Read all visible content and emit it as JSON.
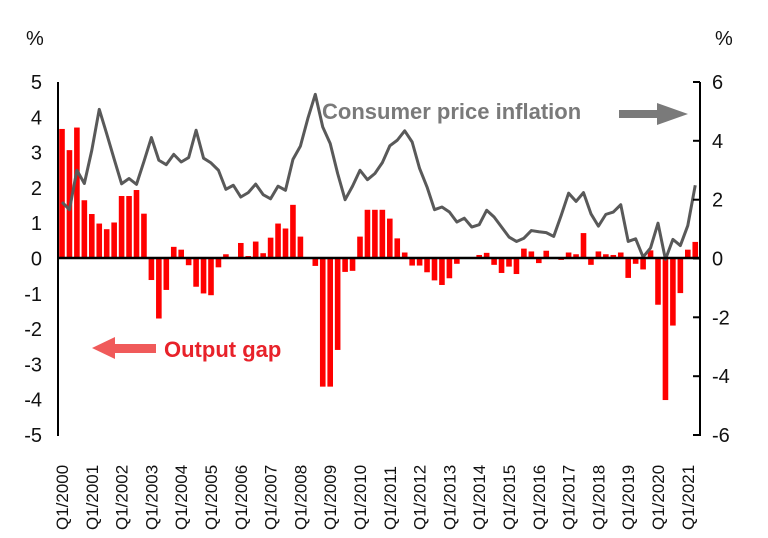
{
  "chart_data": {
    "type": "bar+line",
    "title": "",
    "left_axis": {
      "unit_label": "%",
      "ylim": [
        -5,
        5
      ],
      "ticks": [
        "5",
        "4",
        "3",
        "2",
        "1",
        "0",
        "-1",
        "-2",
        "-3",
        "-4",
        "-5"
      ],
      "tick_values": [
        5,
        4,
        3,
        2,
        1,
        0,
        -1,
        -2,
        -3,
        -4,
        -5
      ]
    },
    "right_axis": {
      "unit_label": "%",
      "ylim": [
        -6,
        6
      ],
      "ticks": [
        "6",
        "4",
        "2",
        "0",
        "-2",
        "-4",
        "-6"
      ],
      "tick_values": [
        6,
        4,
        2,
        0,
        -2,
        -4,
        -6
      ]
    },
    "x_tick_labels": [
      "Q1/2000",
      "Q1/2001",
      "Q1/2002",
      "Q1/2003",
      "Q1/2004",
      "Q1/2005",
      "Q1/2006",
      "Q1/2007",
      "Q1/2008",
      "Q1/2009",
      "Q1/2010",
      "Q1/2011",
      "Q1/2012",
      "Q1/2013",
      "Q1/2014",
      "Q1/2015",
      "Q1/2016",
      "Q1/2017",
      "Q1/2018",
      "Q1/2019",
      "Q1/2020",
      "Q1/2021"
    ],
    "x_first_quarter": "Q1/2000",
    "x_last_quarter": "Q2/2021",
    "grid": false,
    "series": [
      {
        "name": "Output gap",
        "type": "bar",
        "axis": "left",
        "color": "#ff0000",
        "values": [
          3.67,
          3.07,
          3.71,
          1.65,
          1.26,
          0.99,
          0.83,
          1.02,
          1.77,
          1.77,
          1.94,
          1.27,
          -0.61,
          -1.7,
          -0.89,
          0.33,
          0.25,
          -0.19,
          -0.8,
          -0.99,
          -1.04,
          -0.25,
          0.12,
          0.0,
          0.44,
          0.07,
          0.48,
          0.15,
          0.59,
          0.99,
          0.85,
          1.52,
          0.62,
          0.0,
          -0.21,
          -3.63,
          -3.63,
          -2.59,
          -0.38,
          -0.35,
          0.62,
          1.38,
          1.38,
          1.38,
          1.13,
          0.57,
          0.17,
          -0.2,
          -0.2,
          -0.39,
          -0.62,
          -0.75,
          -0.56,
          -0.15,
          0.0,
          0.0,
          0.1,
          0.16,
          -0.18,
          -0.41,
          -0.23,
          -0.44,
          0.28,
          0.2,
          -0.13,
          0.22,
          0.0,
          -0.04,
          0.17,
          0.12,
          0.72,
          -0.18,
          0.2,
          0.12,
          0.1,
          0.17,
          -0.55,
          -0.15,
          -0.31,
          0.23,
          -1.31,
          -4.01,
          -1.9,
          -0.98,
          0.25,
          0.47
        ]
      },
      {
        "name": "Consumer price inflation",
        "type": "line",
        "axis": "right",
        "color": "#595959",
        "values": [
          1.92,
          1.66,
          3.0,
          2.55,
          3.68,
          5.07,
          4.24,
          3.38,
          2.54,
          2.72,
          2.52,
          3.3,
          4.11,
          3.34,
          3.19,
          3.54,
          3.28,
          3.43,
          4.36,
          3.41,
          3.25,
          3.0,
          2.35,
          2.49,
          2.09,
          2.24,
          2.53,
          2.17,
          2.03,
          2.46,
          2.32,
          3.37,
          3.82,
          4.76,
          5.58,
          4.47,
          3.91,
          2.89,
          2.0,
          2.46,
          3.0,
          2.68,
          2.89,
          3.26,
          3.83,
          4.02,
          4.34,
          3.96,
          3.06,
          2.43,
          1.66,
          1.75,
          1.58,
          1.24,
          1.37,
          1.07,
          1.15,
          1.64,
          1.41,
          1.07,
          0.73,
          0.58,
          0.69,
          0.95,
          0.91,
          0.88,
          0.75,
          1.46,
          2.22,
          1.94,
          2.24,
          1.52,
          1.1,
          1.5,
          1.58,
          1.83,
          0.58,
          0.67,
          0.05,
          0.36,
          1.2,
          -0.03,
          0.65,
          0.44,
          1.12,
          2.49
        ]
      }
    ],
    "annotations": [
      {
        "text": "Consumer price inflation",
        "arrow": "right",
        "color": "#7a7a7a",
        "refers_to": "right axis"
      },
      {
        "text": "Output gap",
        "arrow": "left",
        "color": "#e8222a",
        "refers_to": "left axis"
      }
    ],
    "legend": "none (inline annotations)"
  }
}
